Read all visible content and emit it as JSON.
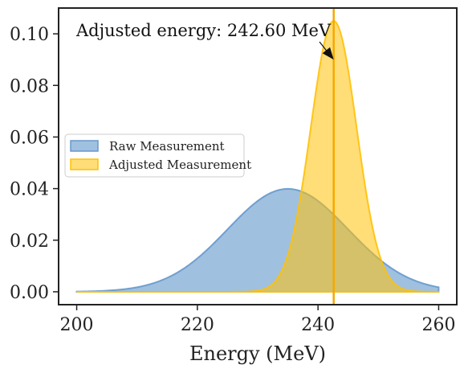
{
  "chart_data": {
    "type": "area",
    "title": "",
    "xlabel": "Energy (MeV)",
    "ylabel": "",
    "xlim": [
      197,
      263
    ],
    "ylim": [
      -0.005,
      0.11
    ],
    "x_ticks": [
      200,
      220,
      240,
      260
    ],
    "x_tick_labels": [
      "200",
      "220",
      "240",
      "260"
    ],
    "y_ticks": [
      0.0,
      0.02,
      0.04,
      0.06,
      0.08,
      0.1
    ],
    "y_tick_labels": [
      "0.00",
      "0.02",
      "0.04",
      "0.06",
      "0.08",
      "0.10"
    ],
    "grid": false,
    "legend_position": "center-left",
    "series": [
      {
        "name": "Raw Measurement",
        "color": "#6699cc",
        "curve": "gaussian",
        "x_range": [
          200,
          260
        ],
        "mean": 235,
        "std": 10,
        "peak": 0.0399
      },
      {
        "name": "Adjusted Measurement",
        "color": "#ffc107",
        "curve": "gaussian",
        "x_range": [
          200,
          260
        ],
        "mean": 242.6,
        "std": 3.8,
        "peak": 0.105
      }
    ],
    "vline": {
      "x": 242.6,
      "color": "#f5a800"
    },
    "annotation": {
      "text": "Adjusted energy: 242.60 MeV",
      "target": [
        242.6,
        0.09
      ]
    }
  }
}
